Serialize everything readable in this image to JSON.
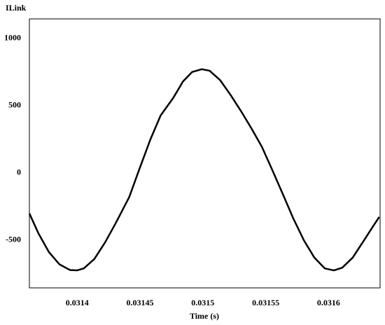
{
  "chart_data": {
    "type": "line",
    "title": "ILink",
    "xlabel": "Time (s)",
    "x": [
      0.031362,
      0.0313692,
      0.0313776,
      0.0313859,
      0.0313942,
      0.0313998,
      0.0314053,
      0.0314137,
      0.031422,
      0.0314303,
      0.0314414,
      0.0314498,
      0.0314581,
      0.0314664,
      0.0314764,
      0.0314842,
      0.0314914,
      0.0314992,
      0.0315053,
      0.0315137,
      0.031522,
      0.0315303,
      0.0315387,
      0.031547,
      0.0315553,
      0.0315637,
      0.031572,
      0.0315803,
      0.0315887,
      0.031597,
      0.0316042,
      0.0316109,
      0.0316192,
      0.0316276,
      0.0316359,
      0.0316403
    ],
    "series": [
      {
        "name": "ILink",
        "color": "#000000",
        "values": [
          -302,
          -450,
          -590,
          -680,
          -722,
          -725,
          -710,
          -640,
          -520,
          -380,
          -180,
          36,
          245,
          427,
          557,
          680,
          750,
          771,
          760,
          690,
          580,
          460,
          330,
          193,
          20,
          -160,
          -340,
          -500,
          -630,
          -710,
          -725,
          -705,
          -630,
          -510,
          -390,
          -328
        ]
      }
    ],
    "xlim": [
      0.031362,
      0.031641
    ],
    "xticks": [
      0.0314,
      0.03145,
      0.0315,
      0.03155,
      0.0316
    ],
    "ylim": [
      -855,
      1145
    ],
    "yticks": [
      -500,
      0,
      500,
      1000
    ],
    "grid": false
  }
}
